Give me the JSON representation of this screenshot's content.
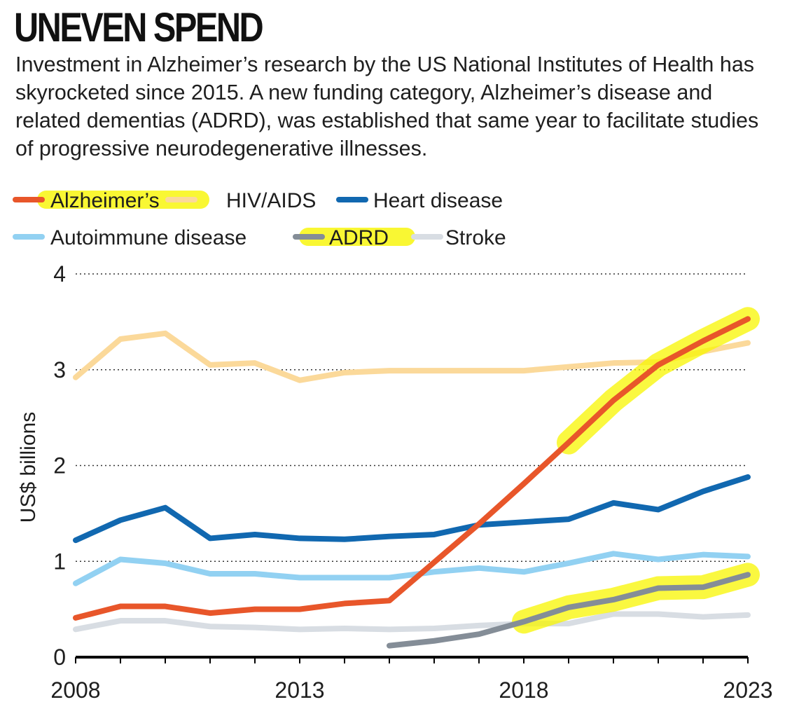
{
  "header": {
    "title": "UNEVEN SPEND",
    "subtitle": "Investment in Alzheimer’s research by the US National Institutes of Health has skyrocketed since 2015. A new funding category, Alzheimer’s disease and related dementias (ADRD), was established that same year to facilitate studies of progressive neurodegenerative illnesses."
  },
  "colors": {
    "alzheimers": "#e8562a",
    "hiv": "#fbd99a",
    "heart": "#1168b0",
    "autoimmune": "#92d1f2",
    "adrd": "#848d97",
    "stroke": "#d8dde3",
    "highlight": "#f8f500",
    "grid": "#333333"
  },
  "chart_data": {
    "type": "line",
    "title": "UNEVEN SPEND",
    "xlabel": "",
    "ylabel": "US$ billions",
    "xlim": [
      2008,
      2023
    ],
    "ylim": [
      0,
      4
    ],
    "x_ticks": [
      2008,
      2013,
      2018,
      2023
    ],
    "y_ticks": [
      0,
      1,
      2,
      3,
      4
    ],
    "grid": "horizontal dotted",
    "legend_position": "top",
    "highlighted_legend_entries": [
      "Alzheimer’s",
      "ADRD"
    ],
    "series": [
      {
        "key": "alzheimers",
        "name": "Alzheimer’s",
        "x": [
          2008,
          2009,
          2010,
          2011,
          2012,
          2013,
          2014,
          2015,
          2016,
          2017,
          2018,
          2019,
          2020,
          2021,
          2022,
          2023
        ],
        "values": [
          0.41,
          0.53,
          0.53,
          0.46,
          0.5,
          0.5,
          0.56,
          0.59,
          0.99,
          1.39,
          1.81,
          2.24,
          2.68,
          3.05,
          3.3,
          3.53
        ],
        "highlight_x_range": [
          2019,
          2023
        ]
      },
      {
        "key": "hiv",
        "name": "HIV/AIDS",
        "x": [
          2008,
          2009,
          2010,
          2011,
          2012,
          2013,
          2014,
          2015,
          2016,
          2017,
          2018,
          2019,
          2020,
          2021,
          2022,
          2023
        ],
        "values": [
          2.92,
          3.32,
          3.38,
          3.05,
          3.07,
          2.89,
          2.97,
          2.99,
          2.99,
          2.99,
          2.99,
          3.03,
          3.07,
          3.08,
          3.19,
          3.28
        ]
      },
      {
        "key": "heart",
        "name": "Heart disease",
        "x": [
          2008,
          2009,
          2010,
          2011,
          2012,
          2013,
          2014,
          2015,
          2016,
          2017,
          2018,
          2019,
          2020,
          2021,
          2022,
          2023
        ],
        "values": [
          1.22,
          1.43,
          1.56,
          1.24,
          1.28,
          1.24,
          1.23,
          1.26,
          1.28,
          1.38,
          1.41,
          1.44,
          1.61,
          1.54,
          1.73,
          1.88
        ]
      },
      {
        "key": "autoimmune",
        "name": "Autoimmune disease",
        "x": [
          2008,
          2009,
          2010,
          2011,
          2012,
          2013,
          2014,
          2015,
          2016,
          2017,
          2018,
          2019,
          2020,
          2021,
          2022,
          2023
        ],
        "values": [
          0.77,
          1.02,
          0.98,
          0.87,
          0.87,
          0.83,
          0.83,
          0.83,
          0.89,
          0.93,
          0.89,
          0.98,
          1.08,
          1.02,
          1.07,
          1.05
        ]
      },
      {
        "key": "adrd",
        "name": "ADRD",
        "x": [
          2015,
          2016,
          2017,
          2018,
          2019,
          2020,
          2021,
          2022,
          2023
        ],
        "values": [
          0.12,
          0.17,
          0.24,
          0.37,
          0.52,
          0.6,
          0.72,
          0.73,
          0.86
        ],
        "highlight_x_range": [
          2018,
          2023
        ]
      },
      {
        "key": "stroke",
        "name": "Stroke",
        "x": [
          2008,
          2009,
          2010,
          2011,
          2012,
          2013,
          2014,
          2015,
          2016,
          2017,
          2018,
          2019,
          2020,
          2021,
          2022,
          2023
        ],
        "values": [
          0.29,
          0.38,
          0.38,
          0.32,
          0.31,
          0.29,
          0.3,
          0.29,
          0.3,
          0.33,
          0.35,
          0.35,
          0.45,
          0.45,
          0.42,
          0.44
        ]
      }
    ]
  }
}
